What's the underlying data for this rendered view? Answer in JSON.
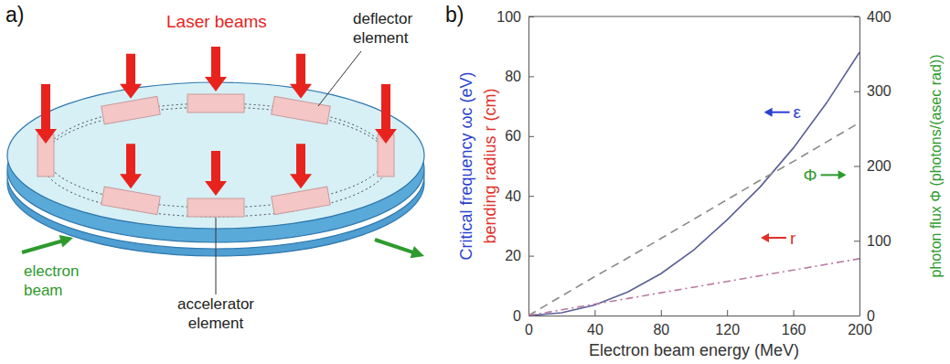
{
  "panel_labels": [
    "a)",
    "b)"
  ],
  "diagram": {
    "title": "Laser beams",
    "labels": [
      "deflector element",
      "accelerator element",
      "electron beam"
    ]
  },
  "chart_data": {
    "type": "line",
    "x_label": "Electron beam energy (MeV)",
    "y_label": "Critical frequency ωc (eV)",
    "y_label_2": "bending radius r (cm)",
    "y2_label": "photon flux Φ (photons/(asec rad))",
    "x": [
      0,
      20,
      40,
      60,
      80,
      100,
      120,
      140,
      160,
      180,
      200
    ],
    "xlim": [
      0,
      200
    ],
    "xticks": [
      0,
      40,
      80,
      120,
      160,
      200
    ],
    "ylim": [
      0,
      100
    ],
    "yticks": [
      0,
      20,
      40,
      60,
      80,
      100
    ],
    "y2lim": [
      0,
      400
    ],
    "y2ticks": [
      0,
      100,
      200,
      300,
      400
    ],
    "series": [
      {
        "name": "ε",
        "color": "#5b5f97",
        "line_style": "solid",
        "values": [
          0,
          0.9,
          3.5,
          7.9,
          14,
          22,
          32,
          43,
          56,
          71,
          88
        ]
      },
      {
        "name": "Φ",
        "color": "#8a8a8a",
        "line_style": "dashed",
        "axis": "y2",
        "values": [
          0,
          26,
          52,
          77,
          103,
          129,
          155,
          181,
          206,
          232,
          258
        ]
      },
      {
        "name": "r",
        "color": "#b87aa0",
        "line_style": "dashdot",
        "values": [
          0,
          1.9,
          3.8,
          5.7,
          7.6,
          9.5,
          11.4,
          13.3,
          15.2,
          17.1,
          19
        ]
      }
    ]
  }
}
